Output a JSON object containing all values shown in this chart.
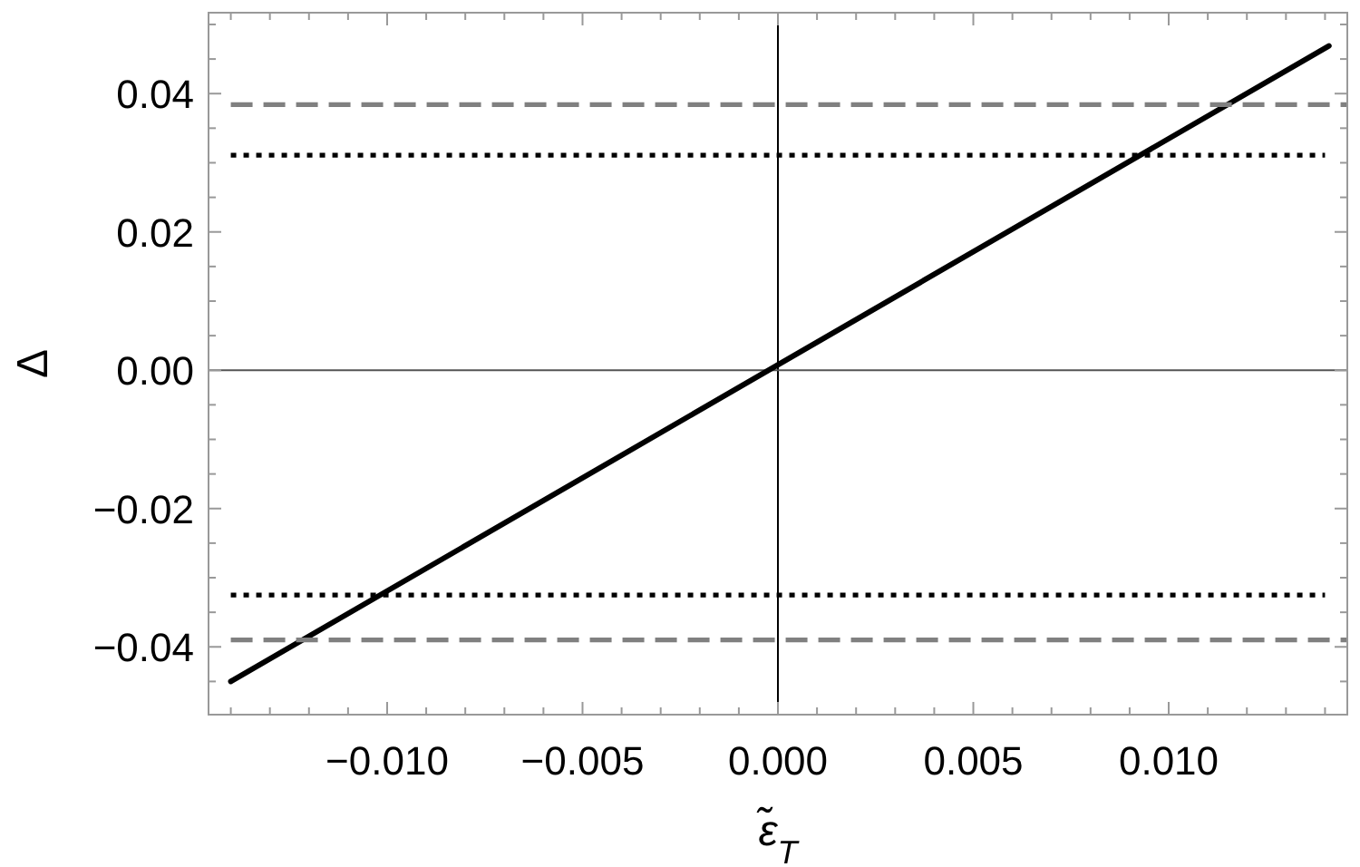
{
  "chart_data": {
    "type": "line",
    "xlabel": "ε̃$_{T}$",
    "ylabel": "Δ",
    "xlim": [
      -0.01457,
      0.01457
    ],
    "ylim": [
      -0.0498,
      0.0517
    ],
    "xticks": [
      {
        "value": -0.014,
        "label": null
      },
      {
        "value": -0.013,
        "label": null
      },
      {
        "value": -0.012,
        "label": null
      },
      {
        "value": -0.011,
        "label": null
      },
      {
        "value": -0.01,
        "label": "−0.010"
      },
      {
        "value": -0.009,
        "label": null
      },
      {
        "value": -0.008,
        "label": null
      },
      {
        "value": -0.007,
        "label": null
      },
      {
        "value": -0.006,
        "label": null
      },
      {
        "value": -0.005,
        "label": "−0.005"
      },
      {
        "value": -0.004,
        "label": null
      },
      {
        "value": -0.003,
        "label": null
      },
      {
        "value": -0.002,
        "label": null
      },
      {
        "value": -0.001,
        "label": null
      },
      {
        "value": 0,
        "label": "0.000"
      },
      {
        "value": 0.001,
        "label": null
      },
      {
        "value": 0.002,
        "label": null
      },
      {
        "value": 0.003,
        "label": null
      },
      {
        "value": 0.004,
        "label": null
      },
      {
        "value": 0.005,
        "label": "0.005"
      },
      {
        "value": 0.006,
        "label": null
      },
      {
        "value": 0.007,
        "label": null
      },
      {
        "value": 0.008,
        "label": null
      },
      {
        "value": 0.009,
        "label": null
      },
      {
        "value": 0.01,
        "label": "0.010"
      },
      {
        "value": 0.011,
        "label": null
      },
      {
        "value": 0.012,
        "label": null
      },
      {
        "value": 0.013,
        "label": null
      },
      {
        "value": 0.014,
        "label": null
      }
    ],
    "yticks": [
      {
        "value": -0.045,
        "label": null
      },
      {
        "value": -0.04,
        "label": "−0.04"
      },
      {
        "value": -0.035,
        "label": null
      },
      {
        "value": -0.03,
        "label": null
      },
      {
        "value": -0.025,
        "label": null
      },
      {
        "value": -0.02,
        "label": "−0.02"
      },
      {
        "value": -0.015,
        "label": null
      },
      {
        "value": -0.01,
        "label": null
      },
      {
        "value": -0.005,
        "label": null
      },
      {
        "value": 0,
        "label": "0.00"
      },
      {
        "value": 0.005,
        "label": null
      },
      {
        "value": 0.01,
        "label": null
      },
      {
        "value": 0.015,
        "label": null
      },
      {
        "value": 0.02,
        "label": "0.02"
      },
      {
        "value": 0.025,
        "label": null
      },
      {
        "value": 0.03,
        "label": null
      },
      {
        "value": 0.035,
        "label": null
      },
      {
        "value": 0.04,
        "label": "0.04"
      },
      {
        "value": 0.045,
        "label": null
      },
      {
        "value": 0.05,
        "label": null
      }
    ],
    "grid": false,
    "ref_lines": [
      {
        "axis": "x",
        "value": 0,
        "color": "#000000"
      },
      {
        "axis": "y",
        "value": 0,
        "color": "#555555"
      }
    ],
    "series": [
      {
        "color": "#000000",
        "line_style": "solid",
        "x": [
          -0.014,
          0.0141
        ],
        "values": [
          -0.045,
          0.0469
        ]
      },
      {
        "color": "#808080",
        "line_style": "dashed",
        "x": [
          -0.014,
          0.01457
        ],
        "values": [
          0.0384,
          0.0384
        ]
      },
      {
        "color": "#000000",
        "line_style": "dotted",
        "x": [
          -0.014,
          0.014
        ],
        "values": [
          0.0311,
          0.0311
        ]
      },
      {
        "color": "#000000",
        "line_style": "dotted",
        "x": [
          -0.014,
          0.014
        ],
        "values": [
          -0.0325,
          -0.0325
        ]
      },
      {
        "color": "#808080",
        "line_style": "dashed",
        "x": [
          -0.014,
          0.01457
        ],
        "values": [
          -0.039,
          -0.039
        ]
      }
    ]
  }
}
